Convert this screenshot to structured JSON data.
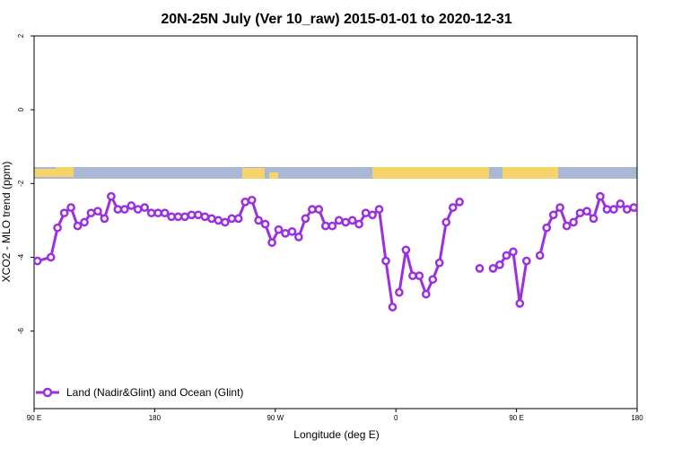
{
  "chart_data": {
    "type": "line",
    "title": "20N-25N July (Ver 10_raw)   2015-01-01 to 2020-12-31",
    "xlabel": "Longitude (deg E)",
    "ylabel": "XCO2 - MLO trend (ppm)",
    "x_tick_labels": [
      "90 E",
      "180",
      "90 W",
      "0",
      "90 E",
      "180"
    ],
    "y_tick_labels": [
      "2",
      "0",
      "-2",
      "-4",
      "-6"
    ],
    "y_ticks": [
      2,
      0,
      -2,
      -4,
      -6
    ],
    "ylim": [
      -8.1,
      2.0
    ],
    "x_tick_positions": [
      90,
      180,
      270,
      360,
      450,
      540
    ],
    "xlim": [
      90,
      540
    ],
    "grid": false,
    "legend_position": "bottom-left",
    "colors": {
      "series": "#9b30e0",
      "land": "#f5d56b",
      "ocean": "#a9b9d4"
    },
    "series": [
      {
        "name": "Land (Nadir&Glint) and Ocean (Glint)",
        "points": [
          [
            92.5,
            -4.1
          ],
          [
            102.5,
            -4.0
          ],
          [
            107.5,
            -3.2
          ],
          [
            112.5,
            -2.8
          ],
          [
            117.5,
            -2.65
          ],
          [
            122.5,
            -3.15
          ],
          [
            127.5,
            -3.05
          ],
          [
            132.5,
            -2.8
          ],
          [
            137.5,
            -2.75
          ],
          [
            142.5,
            -2.95
          ],
          [
            147.5,
            -2.35
          ],
          [
            152.5,
            -2.7
          ],
          [
            157.5,
            -2.7
          ],
          [
            162.5,
            -2.6
          ],
          [
            167.5,
            -2.7
          ],
          [
            172.5,
            -2.65
          ],
          [
            177.5,
            -2.8
          ],
          [
            182.5,
            -2.8
          ],
          [
            187.5,
            -2.8
          ],
          [
            192.5,
            -2.9
          ],
          [
            197.5,
            -2.9
          ],
          [
            202.5,
            -2.9
          ],
          [
            207.5,
            -2.85
          ],
          [
            212.5,
            -2.85
          ],
          [
            217.5,
            -2.9
          ],
          [
            222.5,
            -2.95
          ],
          [
            227.5,
            -3.0
          ],
          [
            232.5,
            -3.05
          ],
          [
            237.5,
            -2.95
          ],
          [
            242.5,
            -2.95
          ],
          [
            247.5,
            -2.5
          ],
          [
            252.5,
            -2.45
          ],
          [
            257.5,
            -3.0
          ],
          [
            262.5,
            -3.1
          ],
          [
            267.5,
            -3.6
          ],
          [
            272.5,
            -3.25
          ],
          [
            277.5,
            -3.35
          ],
          [
            282.5,
            -3.3
          ],
          [
            287.5,
            -3.45
          ],
          [
            292.5,
            -2.95
          ],
          [
            297.5,
            -2.7
          ],
          [
            302.5,
            -2.7
          ],
          [
            307.5,
            -3.15
          ],
          [
            312.5,
            -3.15
          ],
          [
            317.5,
            -3.0
          ],
          [
            322.5,
            -3.05
          ],
          [
            327.5,
            -3.0
          ],
          [
            332.5,
            -3.1
          ],
          [
            337.5,
            -2.8
          ],
          [
            342.5,
            -2.85
          ],
          [
            347.5,
            -2.7
          ],
          [
            352.5,
            -4.1
          ],
          [
            357.5,
            -5.35
          ],
          [
            null,
            null
          ],
          [
            362.5,
            -4.95
          ],
          [
            367.5,
            -3.8
          ],
          [
            372.5,
            -4.5
          ],
          [
            377.5,
            -4.5
          ],
          [
            382.5,
            -5.0
          ],
          [
            387.5,
            -4.6
          ],
          [
            392.5,
            -4.15
          ],
          [
            397.5,
            -3.05
          ],
          [
            402.5,
            -2.65
          ],
          [
            407.5,
            -2.5
          ],
          [
            null,
            null
          ],
          [
            422.5,
            -4.3
          ],
          [
            null,
            null
          ],
          [
            432.5,
            -4.3
          ],
          [
            437.5,
            -4.2
          ],
          [
            442.5,
            -3.95
          ],
          [
            447.5,
            -3.85
          ],
          [
            452.5,
            -5.25
          ],
          [
            457.5,
            -4.1
          ],
          [
            null,
            null
          ],
          [
            467.5,
            -3.95
          ],
          [
            472.5,
            -3.2
          ],
          [
            477.5,
            -2.85
          ],
          [
            482.5,
            -2.65
          ],
          [
            487.5,
            -3.15
          ],
          [
            492.5,
            -3.05
          ],
          [
            497.5,
            -2.8
          ],
          [
            502.5,
            -2.75
          ],
          [
            507.5,
            -2.95
          ],
          [
            512.5,
            -2.35
          ],
          [
            517.5,
            -2.7
          ],
          [
            522.5,
            -2.7
          ],
          [
            527.5,
            -2.55
          ],
          [
            532.5,
            -2.7
          ],
          [
            537.5,
            -2.65
          ],
          [
            542.5,
            -2.85
          ]
        ]
      }
    ]
  }
}
